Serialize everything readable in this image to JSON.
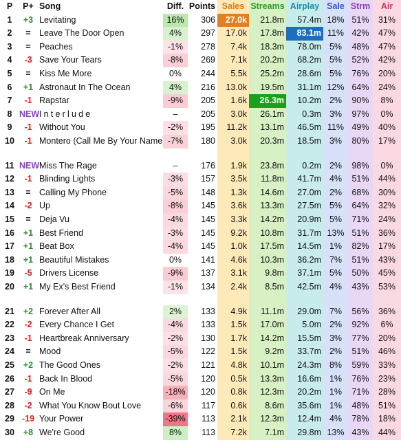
{
  "headers": {
    "pos": "P",
    "change": "P+",
    "song": "Song",
    "diff": "Diff.",
    "points": "Points",
    "sales": "Sales",
    "streams": "Streams",
    "airplay": "Airplay",
    "sale_pct": "Sale",
    "strm_pct": "Strm",
    "air_pct": "Air"
  },
  "colors": {
    "up": "#2e8b2e",
    "down": "#d02020",
    "new": "#8a3fb8",
    "sales_bg": "#fdeab8",
    "streams_bg": "#d8f1c4",
    "airplay_bg": "#c8ecec",
    "sale_bg": "#d8e1fa",
    "strm_bg": "#e8d8f6",
    "air_bg": "#fbd9e2",
    "top_sales": "#e08020",
    "top_streams": "#1aa01a",
    "top_airplay": "#1c6fbf"
  },
  "rows": [
    {
      "pos": "1",
      "change": "+3",
      "song": "Levitating",
      "diff": "16%",
      "points": "306",
      "sales": "27.0k",
      "streams": "21.8m",
      "airplay": "57.4m",
      "sale": "18%",
      "strm": "51%",
      "air": "31%"
    },
    {
      "pos": "2",
      "change": "=",
      "song": "Leave The Door Open",
      "diff": "4%",
      "points": "297",
      "sales": "17.0k",
      "streams": "17.8m",
      "airplay": "83.1m",
      "sale": "11%",
      "strm": "42%",
      "air": "47%"
    },
    {
      "pos": "3",
      "change": "=",
      "song": "Peaches",
      "diff": "-1%",
      "points": "278",
      "sales": "7.4k",
      "streams": "18.3m",
      "airplay": "78.0m",
      "sale": "5%",
      "strm": "48%",
      "air": "47%"
    },
    {
      "pos": "4",
      "change": "-3",
      "song": "Save Your Tears",
      "diff": "-8%",
      "points": "269",
      "sales": "7.1k",
      "streams": "20.2m",
      "airplay": "68.2m",
      "sale": "5%",
      "strm": "52%",
      "air": "42%"
    },
    {
      "pos": "5",
      "change": "=",
      "song": "Kiss Me More",
      "diff": "0%",
      "points": "244",
      "sales": "5.5k",
      "streams": "25.2m",
      "airplay": "28.6m",
      "sale": "5%",
      "strm": "76%",
      "air": "20%"
    },
    {
      "pos": "6",
      "change": "+1",
      "song": "Astronaut In The Ocean",
      "diff": "4%",
      "points": "216",
      "sales": "13.0k",
      "streams": "19.5m",
      "airplay": "31.1m",
      "sale": "12%",
      "strm": "64%",
      "air": "24%"
    },
    {
      "pos": "7",
      "change": "-1",
      "song": "Rapstar",
      "diff": "-9%",
      "points": "205",
      "sales": "1.6k",
      "streams": "26.3m",
      "airplay": "10.2m",
      "sale": "2%",
      "strm": "90%",
      "air": "8%"
    },
    {
      "pos": "8",
      "change": "NEW",
      "song": "Interlude",
      "diff": "–",
      "points": "205",
      "sales": "3.0k",
      "streams": "26.1m",
      "airplay": "0.3m",
      "sale": "3%",
      "strm": "97%",
      "air": "0%"
    },
    {
      "pos": "9",
      "change": "-1",
      "song": "Without You",
      "diff": "-2%",
      "points": "195",
      "sales": "11.2k",
      "streams": "13.1m",
      "airplay": "46.5m",
      "sale": "11%",
      "strm": "49%",
      "air": "40%"
    },
    {
      "pos": "10",
      "change": "-1",
      "song": "Montero (Call Me By Your Name)",
      "diff": "-7%",
      "points": "180",
      "sales": "3.0k",
      "streams": "20.3m",
      "airplay": "18.5m",
      "sale": "3%",
      "strm": "80%",
      "air": "17%"
    },
    {
      "pos": "11",
      "change": "NEW",
      "song": "Miss The Rage",
      "diff": "–",
      "points": "176",
      "sales": "1.9k",
      "streams": "23.8m",
      "airplay": "0.2m",
      "sale": "2%",
      "strm": "98%",
      "air": "0%"
    },
    {
      "pos": "12",
      "change": "-1",
      "song": "Blinding Lights",
      "diff": "-3%",
      "points": "157",
      "sales": "3.5k",
      "streams": "11.8m",
      "airplay": "41.7m",
      "sale": "4%",
      "strm": "51%",
      "air": "44%"
    },
    {
      "pos": "13",
      "change": "=",
      "song": "Calling My Phone",
      "diff": "-5%",
      "points": "148",
      "sales": "1.3k",
      "streams": "14.6m",
      "airplay": "27.0m",
      "sale": "2%",
      "strm": "68%",
      "air": "30%"
    },
    {
      "pos": "14",
      "change": "-2",
      "song": "Up",
      "diff": "-8%",
      "points": "145",
      "sales": "3.6k",
      "streams": "13.3m",
      "airplay": "27.5m",
      "sale": "5%",
      "strm": "64%",
      "air": "32%"
    },
    {
      "pos": "15",
      "change": "=",
      "song": "Deja Vu",
      "diff": "-4%",
      "points": "145",
      "sales": "3.3k",
      "streams": "14.2m",
      "airplay": "20.9m",
      "sale": "5%",
      "strm": "71%",
      "air": "24%"
    },
    {
      "pos": "16",
      "change": "+1",
      "song": "Best Friend",
      "diff": "-3%",
      "points": "145",
      "sales": "9.2k",
      "streams": "10.8m",
      "airplay": "31.7m",
      "sale": "13%",
      "strm": "51%",
      "air": "36%"
    },
    {
      "pos": "17",
      "change": "+1",
      "song": "Beat Box",
      "diff": "-4%",
      "points": "145",
      "sales": "1.0k",
      "streams": "17.5m",
      "airplay": "14.5m",
      "sale": "1%",
      "strm": "82%",
      "air": "17%"
    },
    {
      "pos": "18",
      "change": "+1",
      "song": "Beautiful Mistakes",
      "diff": "0%",
      "points": "141",
      "sales": "4.6k",
      "streams": "10.3m",
      "airplay": "36.2m",
      "sale": "7%",
      "strm": "51%",
      "air": "43%"
    },
    {
      "pos": "19",
      "change": "-5",
      "song": "Drivers License",
      "diff": "-9%",
      "points": "137",
      "sales": "3.1k",
      "streams": "9.8m",
      "airplay": "37.1m",
      "sale": "5%",
      "strm": "50%",
      "air": "45%"
    },
    {
      "pos": "20",
      "change": "+1",
      "song": "My Ex's Best Friend",
      "diff": "-1%",
      "points": "134",
      "sales": "2.4k",
      "streams": "8.5m",
      "airplay": "42.5m",
      "sale": "4%",
      "strm": "43%",
      "air": "53%"
    },
    {
      "pos": "21",
      "change": "+2",
      "song": "Forever After All",
      "diff": "2%",
      "points": "133",
      "sales": "4.9k",
      "streams": "11.1m",
      "airplay": "29.0m",
      "sale": "7%",
      "strm": "56%",
      "air": "36%"
    },
    {
      "pos": "22",
      "change": "-2",
      "song": "Every Chance I Get",
      "diff": "-4%",
      "points": "133",
      "sales": "1.5k",
      "streams": "17.0m",
      "airplay": "5.0m",
      "sale": "2%",
      "strm": "92%",
      "air": "6%"
    },
    {
      "pos": "23",
      "change": "-1",
      "song": "Heartbreak Anniversary",
      "diff": "-2%",
      "points": "130",
      "sales": "1.7k",
      "streams": "14.2m",
      "airplay": "15.5m",
      "sale": "3%",
      "strm": "77%",
      "air": "20%"
    },
    {
      "pos": "24",
      "change": "=",
      "song": "Mood",
      "diff": "-5%",
      "points": "122",
      "sales": "1.5k",
      "streams": "9.2m",
      "airplay": "33.7m",
      "sale": "2%",
      "strm": "51%",
      "air": "46%"
    },
    {
      "pos": "25",
      "change": "+2",
      "song": "The Good Ones",
      "diff": "-2%",
      "points": "121",
      "sales": "4.8k",
      "streams": "10.1m",
      "airplay": "24.3m",
      "sale": "8%",
      "strm": "59%",
      "air": "33%"
    },
    {
      "pos": "26",
      "change": "-1",
      "song": "Back In Blood",
      "diff": "-5%",
      "points": "120",
      "sales": "0.5k",
      "streams": "13.3m",
      "airplay": "16.6m",
      "sale": "1%",
      "strm": "76%",
      "air": "23%"
    },
    {
      "pos": "27",
      "change": "-9",
      "song": "On Me",
      "diff": "-18%",
      "points": "120",
      "sales": "0.8k",
      "streams": "12.3m",
      "airplay": "20.2m",
      "sale": "1%",
      "strm": "71%",
      "air": "28%"
    },
    {
      "pos": "28",
      "change": "-2",
      "song": "What You Know Bout Love",
      "diff": "-6%",
      "points": "117",
      "sales": "0.6k",
      "streams": "8.6m",
      "airplay": "35.6m",
      "sale": "1%",
      "strm": "48%",
      "air": "51%"
    },
    {
      "pos": "29",
      "change": "-19",
      "song": "Your Power",
      "diff": "-39%",
      "points": "113",
      "sales": "2.1k",
      "streams": "12.3m",
      "airplay": "12.4m",
      "sale": "4%",
      "strm": "78%",
      "air": "18%"
    },
    {
      "pos": "30",
      "change": "+8",
      "song": "We're Good",
      "diff": "8%",
      "points": "113",
      "sales": "7.2k",
      "streams": "7.1m",
      "airplay": "29.8m",
      "sale": "13%",
      "strm": "43%",
      "air": "44%"
    }
  ]
}
